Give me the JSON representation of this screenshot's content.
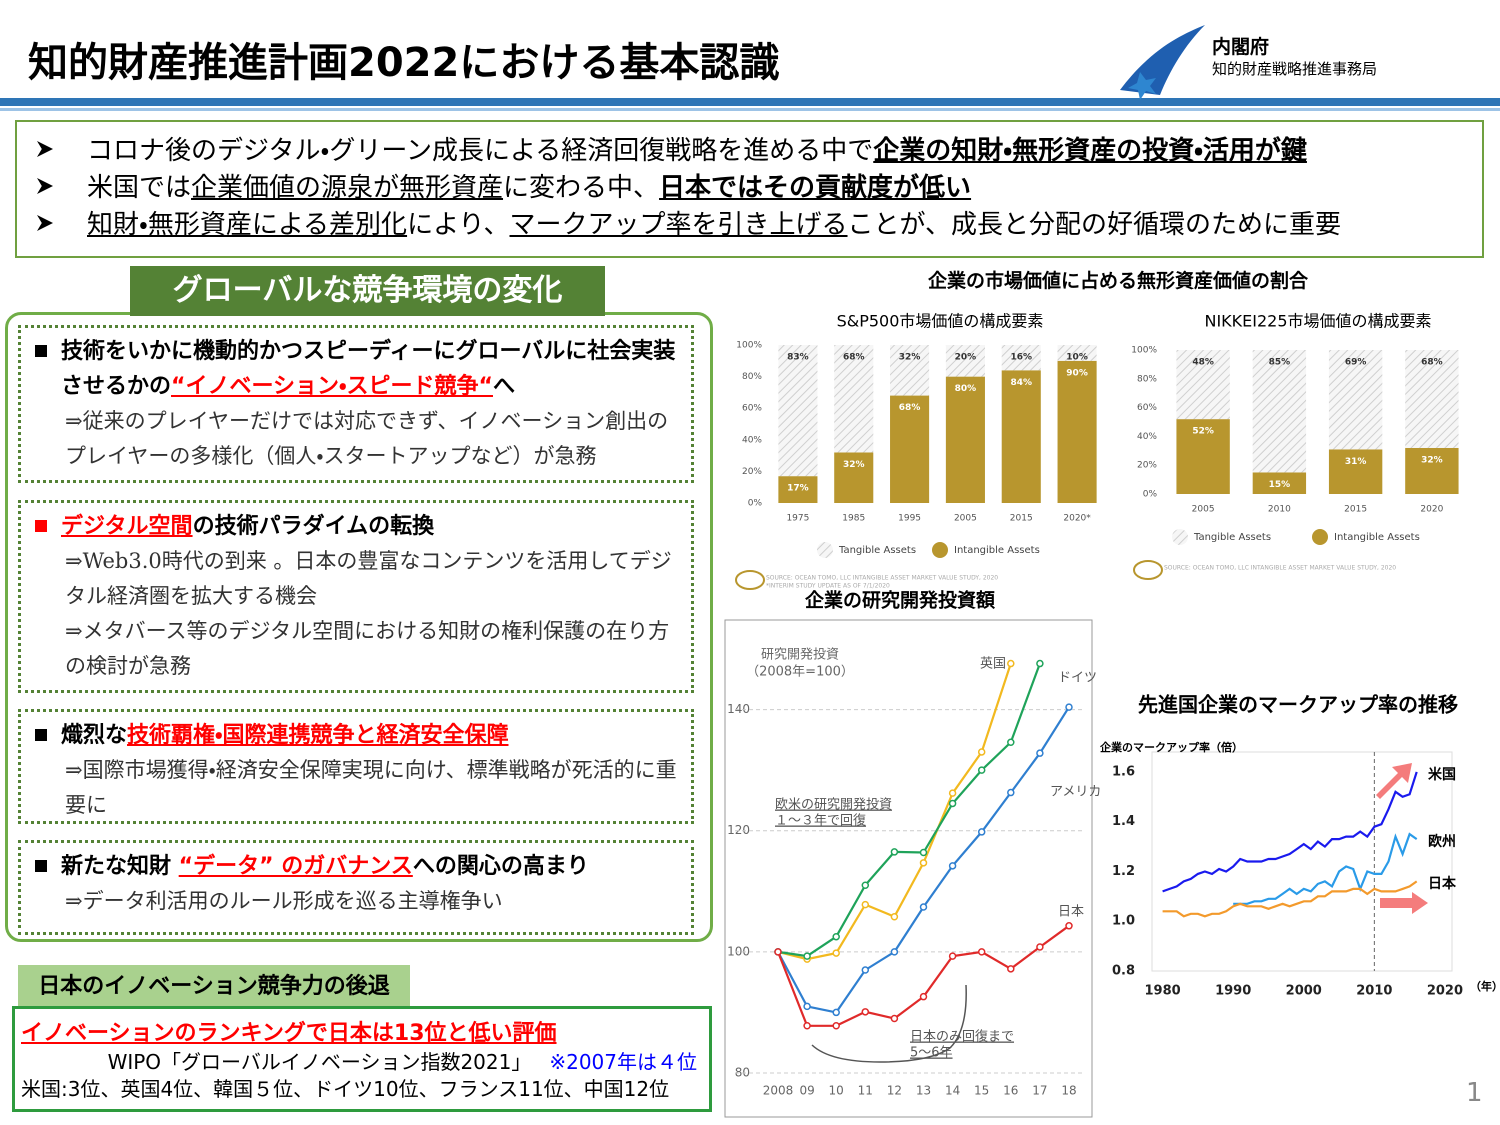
{
  "header": {
    "title": "知的財産推進計画2022における基本認識",
    "org": "内閣府",
    "org_sub": "知的財産戦略推進事務局"
  },
  "bullets": [
    [
      {
        "text": "コロナ後のデジタル・グリーン成長による経済回復戦略を進める中で",
        "style": "plain"
      },
      {
        "text": "企業の知財・無形資産の投資・活用が鍵",
        "style": "bold-underline"
      }
    ],
    [
      {
        "text": "米国では",
        "style": "plain"
      },
      {
        "text": "企業価値の源泉が無形資産",
        "style": "underline"
      },
      {
        "text": "に変わる中、",
        "style": "plain"
      },
      {
        "text": "日本ではその貢献度が低い",
        "style": "bold-underline"
      }
    ],
    [
      {
        "text": "知財・無形資産による差別化",
        "style": "underline"
      },
      {
        "text": "により、",
        "style": "plain"
      },
      {
        "text": "マークアップ率を引き上げる",
        "style": "underline"
      },
      {
        "text": "ことが、成長と分配の好循環のために重要",
        "style": "plain"
      }
    ]
  ],
  "panel": {
    "title": "グローバルな競争環境の変化",
    "items": [
      {
        "marker_color": "#000000",
        "heading": [
          {
            "text": "技術をいかに機動的かつスピーディーにグローバルに社会実装させるかの",
            "style": "bold"
          },
          {
            "text": "“イノベーション・スピード競争“",
            "style": "red-bold-underline"
          },
          {
            "text": "へ",
            "style": "bold"
          }
        ],
        "body": [
          "⇒従来のプレイヤーだけでは対応できず、イノベーション創出のプレイヤーの多様化（個人・スタートアップなど）が急務"
        ]
      },
      {
        "marker_color": "#ff0000",
        "heading": [
          {
            "text": "デジタル空間",
            "style": "red-bold-underline"
          },
          {
            "text": "の技術パラダイムの転換",
            "style": "bold"
          }
        ],
        "body": [
          "⇒Web3.0時代の到来 。日本の豊富なコンテンツを活用してデジタル経済圏を拡大する機会",
          "⇒メタバース等のデジタル空間における知財の権利保護の在り方の検討が急務"
        ]
      },
      {
        "marker_color": "#000000",
        "heading": [
          {
            "text": "熾烈な",
            "style": "bold"
          },
          {
            "text": "技術覇権・国際連携競争と経済安全保障",
            "style": "red-bold-underline"
          }
        ],
        "body": [
          "⇒国際市場獲得・経済安全保障実現に向け、標準戦略が死活的に重要に"
        ]
      },
      {
        "marker_color": "#000000",
        "heading": [
          {
            "text": "新たな知財 ",
            "style": "bold"
          },
          {
            "text": "“データ” のガバナンス",
            "style": "red-bold-underline"
          },
          {
            "text": "への関心の高まり",
            "style": "bold"
          }
        ],
        "body": [
          "⇒データ利活用のルール形成を巡る主導権争い"
        ]
      }
    ]
  },
  "ranking": {
    "title": "日本のイノベーション競争力の後退",
    "headline": "イノベーションのランキングで日本は13位と低い評価",
    "source": "WIPO「グローバルイノベーション指数2021」",
    "note": "※2007年は４位",
    "list": "米国:3位、英国4位、韓国５位、ドイツ10位、フランス11位、中国12位"
  },
  "market_value_title": "企業の市場価値に占める無形資産価値の割合",
  "page_number": "1",
  "chart_data": [
    {
      "type": "stacked_bar",
      "title": "S&P500市場価値の構成要素",
      "categories": [
        "1975",
        "1985",
        "1995",
        "2005",
        "2015",
        "2020*"
      ],
      "series": [
        {
          "name": "Tangible Assets",
          "color": "#cfcfcf",
          "fill_style": "hatch",
          "values": [
            83,
            68,
            32,
            20,
            16,
            10
          ],
          "value_labels": [
            "83%",
            "68%",
            "32%",
            "20%",
            "16%",
            "10%"
          ]
        },
        {
          "name": "Intangible Assets",
          "color": "#b8962e",
          "fill_style": "solid",
          "values": [
            17,
            32,
            68,
            80,
            84,
            90
          ],
          "value_labels": [
            "17%",
            "32%",
            "68%",
            "80%",
            "84%",
            "90%"
          ]
        }
      ],
      "ylim": [
        0,
        100
      ],
      "yticks": [
        {
          "value": 0,
          "label": "0%"
        },
        {
          "value": 20,
          "label": "20%"
        },
        {
          "value": 40,
          "label": "40%"
        },
        {
          "value": 60,
          "label": "60%"
        },
        {
          "value": 80,
          "label": "80%"
        },
        {
          "value": 100,
          "label": "100%"
        }
      ],
      "source": [
        "SOURCE: OCEAN TOMO, LLC INTANGIBLE ASSET MARKET VALUE STUDY, 2020",
        "*INTERIM STUDY UPDATE AS OF 7/1/2020"
      ]
    },
    {
      "type": "stacked_bar",
      "title": "NIKKEI225市場価値の構成要素",
      "categories": [
        "2005",
        "2010",
        "2015",
        "2020"
      ],
      "series": [
        {
          "name": "Tangible Assets",
          "color": "#cfcfcf",
          "fill_style": "hatch",
          "values": [
            48,
            85,
            69,
            68
          ],
          "value_labels": [
            "48%",
            "85%",
            "69%",
            "68%"
          ]
        },
        {
          "name": "Intangible Assets",
          "color": "#b8962e",
          "fill_style": "solid",
          "values": [
            52,
            15,
            31,
            32
          ],
          "value_labels": [
            "52%",
            "15%",
            "31%",
            "32%"
          ]
        }
      ],
      "ylim": [
        0,
        100
      ],
      "yticks": [
        {
          "value": 0,
          "label": "0%"
        },
        {
          "value": 20,
          "label": "20%"
        },
        {
          "value": 40,
          "label": "40%"
        },
        {
          "value": 60,
          "label": "60%"
        },
        {
          "value": 80,
          "label": "80%"
        },
        {
          "value": 100,
          "label": "100%"
        }
      ],
      "source": [
        "SOURCE: OCEAN TOMO, LLC INTANGIBLE ASSET MARKET VALUE STUDY, 2020"
      ]
    },
    {
      "type": "line",
      "title": "企業の研究開発投資額",
      "ylabel": [
        "研究開発投資",
        "（2008年=100）"
      ],
      "categories": [
        "2008",
        "09",
        "10",
        "11",
        "12",
        "13",
        "14",
        "15",
        "16",
        "17",
        "18"
      ],
      "series": [
        {
          "name": "英国",
          "color": "#f2b91f",
          "values": [
            100,
            98.8,
            99.8,
            107.8,
            105.8,
            114.7,
            126.2,
            133,
            147.6,
            null,
            null
          ]
        },
        {
          "name": "ドイツ",
          "color": "#1fa35a",
          "values": [
            100,
            99.3,
            102.5,
            111,
            116.5,
            116.4,
            124.5,
            130,
            134.6,
            147.6,
            null
          ]
        },
        {
          "name": "アメリカ",
          "color": "#2f7fd0",
          "values": [
            100,
            91,
            90,
            97,
            100,
            107.4,
            114.2,
            119.8,
            126.3,
            132.8,
            140.4
          ]
        },
        {
          "name": "日本",
          "color": "#e02a2a",
          "values": [
            100,
            87.8,
            87.8,
            90.1,
            89,
            92.6,
            99.3,
            100,
            97.2,
            100.8,
            104.3
          ]
        }
      ],
      "ylim": [
        80,
        150
      ],
      "yticks": [
        80,
        100,
        120,
        140
      ],
      "grid": true,
      "annotations": [
        [
          "欧米の研究開発投資",
          "１～３年で回復"
        ],
        [
          "日本のみ回復まで",
          "5～6年"
        ]
      ]
    },
    {
      "type": "line",
      "title": "先進国企業のマークアップ率の推移",
      "ylabel": [
        "企業のマークアップ率（倍）"
      ],
      "xlabel": "（年）",
      "x": [
        1980,
        1981,
        1982,
        1983,
        1984,
        1985,
        1986,
        1987,
        1988,
        1989,
        1990,
        1991,
        1992,
        1993,
        1994,
        1995,
        1996,
        1997,
        1998,
        1999,
        2000,
        2001,
        2002,
        2003,
        2004,
        2005,
        2006,
        2007,
        2008,
        2009,
        2010,
        2011,
        2012,
        2013,
        2014,
        2015,
        2016
      ],
      "series": [
        {
          "name": "米国",
          "color": "#1a1aee",
          "values": [
            1.12,
            1.13,
            1.14,
            1.16,
            1.17,
            1.19,
            1.2,
            1.19,
            1.21,
            1.2,
            1.22,
            1.25,
            1.24,
            1.24,
            1.24,
            1.25,
            1.25,
            1.26,
            1.27,
            1.29,
            1.31,
            1.29,
            1.32,
            1.3,
            1.33,
            1.33,
            1.34,
            1.34,
            1.36,
            1.34,
            1.38,
            1.39,
            1.45,
            1.52,
            1.5,
            1.51,
            1.6
          ]
        },
        {
          "name": "欧州",
          "color": "#2a9be8",
          "values": [
            null,
            null,
            null,
            null,
            null,
            null,
            null,
            null,
            null,
            null,
            1.07,
            1.07,
            1.07,
            1.08,
            1.08,
            1.09,
            1.09,
            1.11,
            1.13,
            1.11,
            1.13,
            1.12,
            1.15,
            1.16,
            1.14,
            1.2,
            1.22,
            1.21,
            1.13,
            1.2,
            1.19,
            1.19,
            1.24,
            1.34,
            1.27,
            1.35,
            1.33
          ]
        },
        {
          "name": "日本",
          "color": "#f39a2c",
          "values": [
            1.04,
            1.04,
            1.04,
            1.02,
            1.03,
            1.03,
            1.02,
            1.03,
            1.03,
            1.04,
            1.06,
            1.07,
            1.06,
            1.06,
            1.06,
            1.05,
            1.06,
            1.07,
            1.06,
            1.07,
            1.08,
            1.08,
            1.1,
            1.1,
            1.12,
            1.12,
            1.12,
            1.13,
            1.13,
            1.11,
            1.13,
            1.12,
            1.12,
            1.12,
            1.13,
            1.14,
            1.16
          ]
        }
      ],
      "xlim": [
        1978.5,
        2021
      ],
      "xticks": [
        1980,
        1990,
        2000,
        2010,
        2020
      ],
      "ylim": [
        0.8,
        1.68
      ],
      "yticks": [
        0.8,
        {
          "value": 1,
          "label": "1.0"
        },
        1.2,
        1.4,
        1.6
      ],
      "grid": false
    }
  ]
}
